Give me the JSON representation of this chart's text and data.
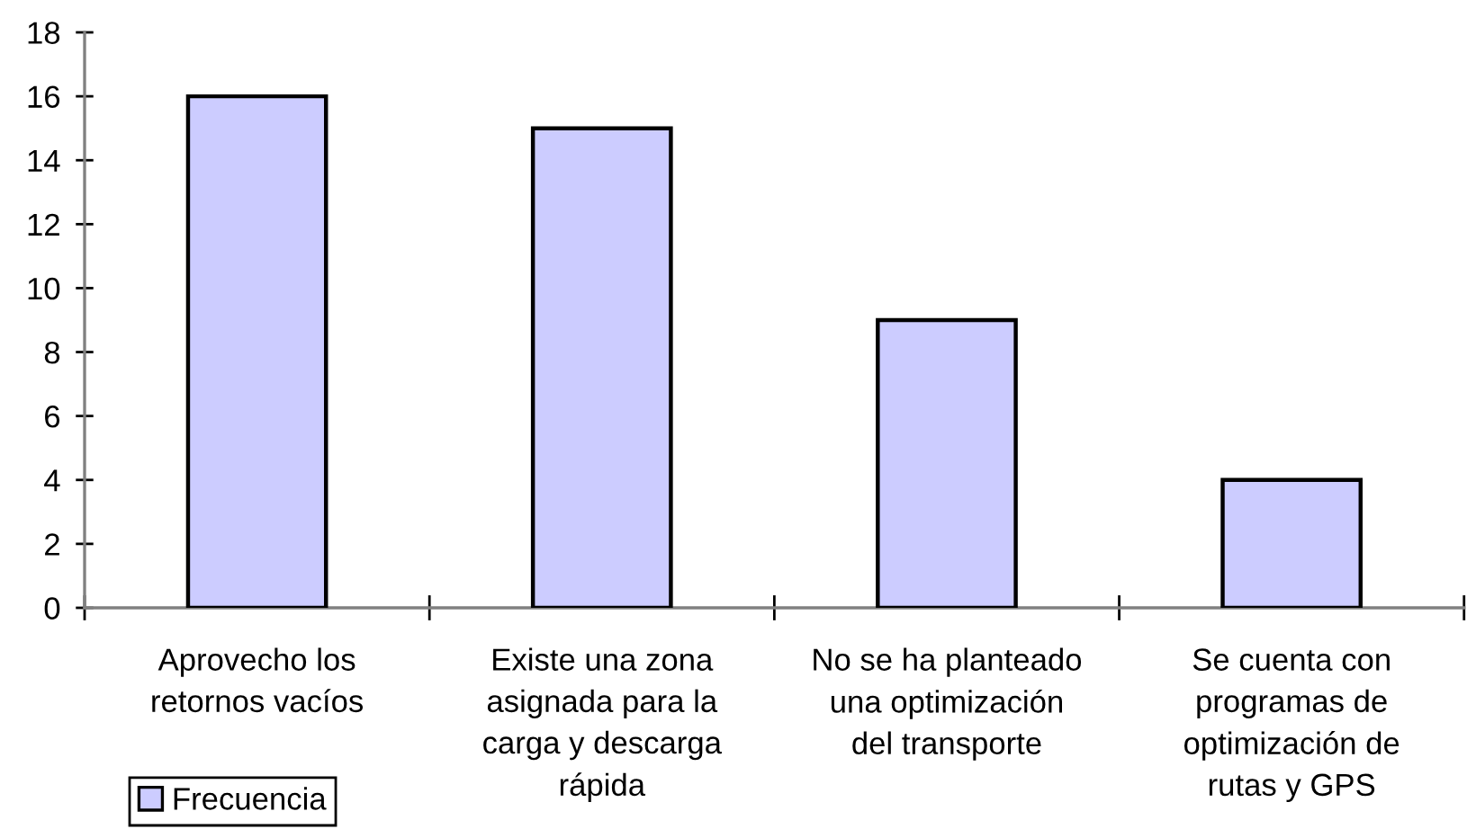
{
  "chart_data": {
    "type": "bar",
    "categories": [
      "Aprovecho los\nretornos vacíos",
      "Existe una zona\nasignada para la\ncarga y descarga\nrápida",
      "No se ha planteado\nuna optimización\ndel transporte",
      "Se cuenta con\nprogramas de\noptimización de\nrutas y GPS"
    ],
    "series": [
      {
        "name": "Frecuencia",
        "color": "#ccccff",
        "values": [
          16,
          15,
          9,
          4
        ]
      }
    ],
    "ylim": [
      0,
      18
    ],
    "yticks": [
      0,
      2,
      4,
      6,
      8,
      10,
      12,
      14,
      16,
      18
    ],
    "grid": false,
    "legend": "bottom left"
  }
}
